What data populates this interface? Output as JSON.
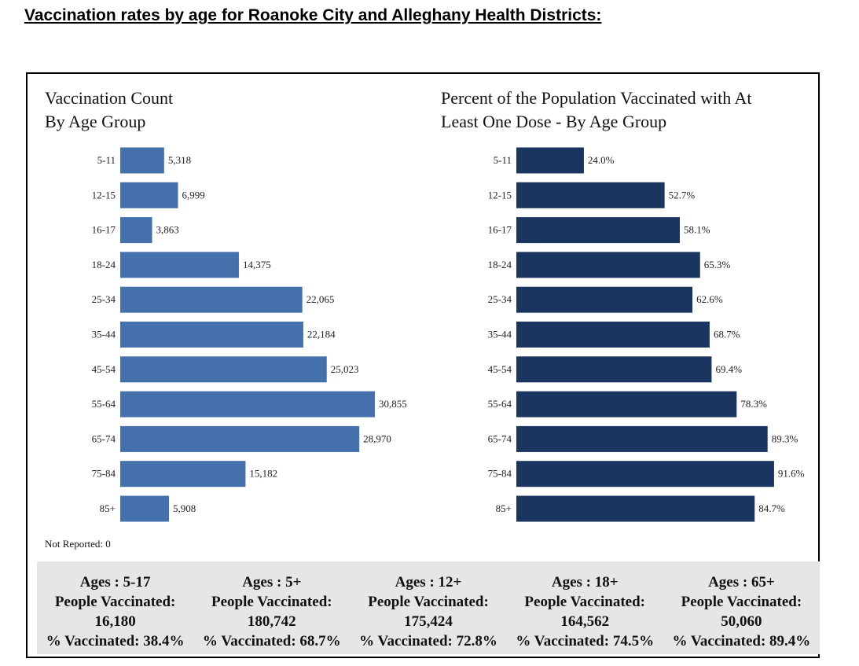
{
  "heading": "Vaccination rates by age for Roanoke City and Alleghany Health Districts:",
  "not_reported": "Not Reported: 0",
  "colors": {
    "count_bar": "#4470ac",
    "percent_bar": "#1a355f"
  },
  "chart_data": [
    {
      "type": "bar",
      "orientation": "horizontal",
      "title": "Vaccination Count\nBy Age Group",
      "categories": [
        "5-11",
        "12-15",
        "16-17",
        "18-24",
        "25-34",
        "35-44",
        "45-54",
        "55-64",
        "65-74",
        "75-84",
        "85+"
      ],
      "values": [
        5318,
        6999,
        3863,
        14375,
        22065,
        22184,
        25023,
        30855,
        28970,
        15182,
        5908
      ],
      "value_labels": [
        "5,318",
        "6,999",
        "3,863",
        "14,375",
        "22,065",
        "22,184",
        "25,023",
        "30,855",
        "28,970",
        "15,182",
        "5,908"
      ],
      "xlim": [
        0,
        40000
      ],
      "grid": false
    },
    {
      "type": "bar",
      "orientation": "horizontal",
      "title": "Percent of the Population Vaccinated with At\nLeast One Dose - By Age Group",
      "categories": [
        "5-11",
        "12-15",
        "16-17",
        "18-24",
        "25-34",
        "35-44",
        "45-54",
        "55-64",
        "65-74",
        "75-84",
        "85+"
      ],
      "values": [
        24.0,
        52.7,
        58.1,
        65.3,
        62.6,
        68.7,
        69.4,
        78.3,
        89.3,
        91.6,
        84.7
      ],
      "value_labels": [
        "24.0%",
        "52.7%",
        "58.1%",
        "65.3%",
        "62.6%",
        "68.7%",
        "69.4%",
        "78.3%",
        "89.3%",
        "91.6%",
        "84.7%"
      ],
      "xlim": [
        0,
        100
      ],
      "grid": false
    }
  ],
  "summary": [
    {
      "ages": "Ages : 5-17",
      "people_label": "People Vaccinated:",
      "people": "16,180",
      "percent": "% Vaccinated: 38.4%"
    },
    {
      "ages": "Ages : 5+",
      "people_label": "People Vaccinated:",
      "people": "180,742",
      "percent": "% Vaccinated: 68.7%"
    },
    {
      "ages": "Ages : 12+",
      "people_label": "People Vaccinated:",
      "people": "175,424",
      "percent": "% Vaccinated: 72.8%"
    },
    {
      "ages": "Ages : 18+",
      "people_label": "People Vaccinated:",
      "people": "164,562",
      "percent": "% Vaccinated: 74.5%"
    },
    {
      "ages": "Ages : 65+",
      "people_label": "People Vaccinated:",
      "people": "50,060",
      "percent": "% Vaccinated: 89.4%"
    }
  ]
}
